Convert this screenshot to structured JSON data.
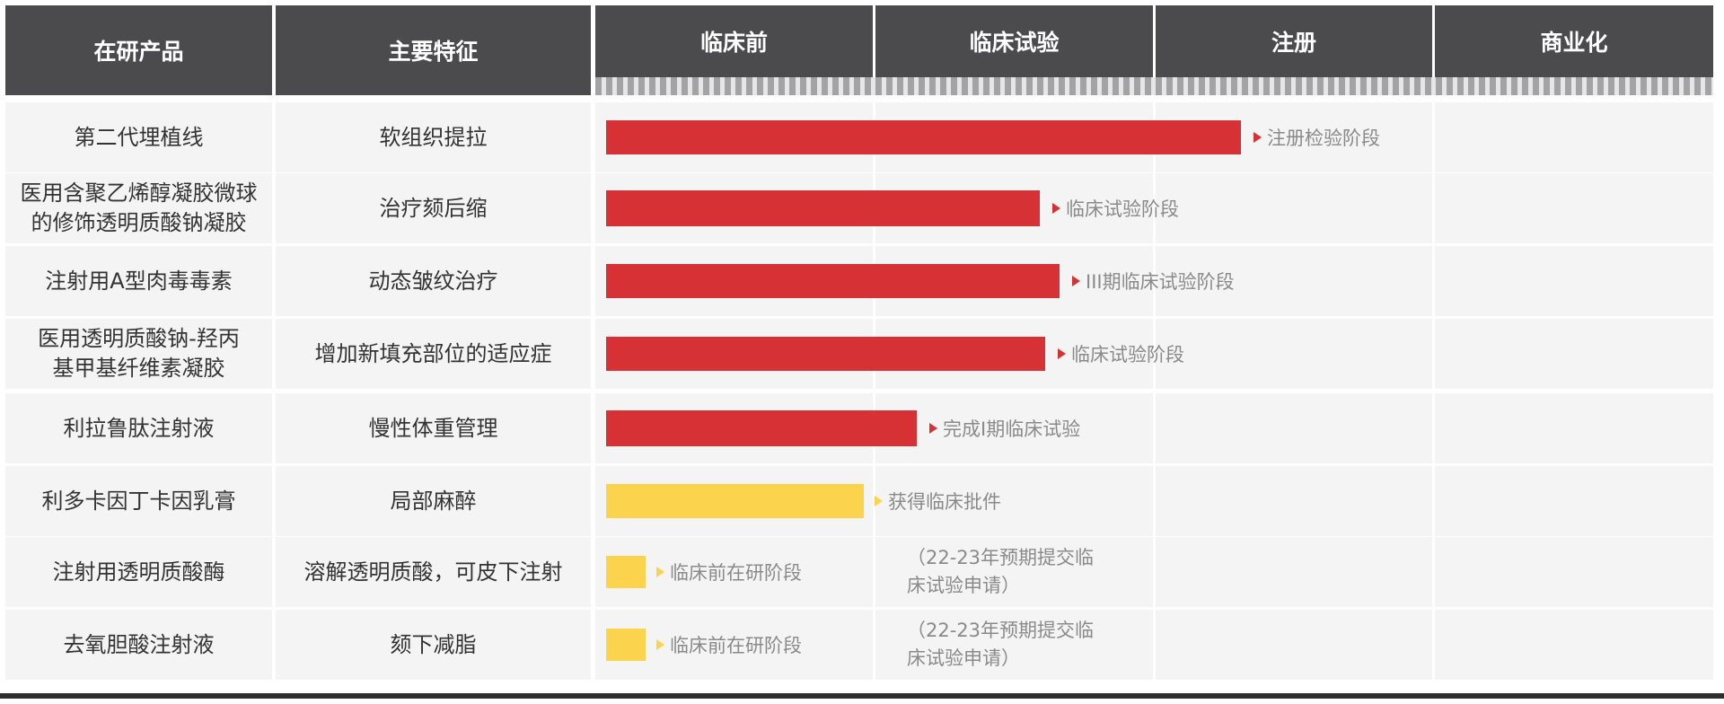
{
  "chart_data": {
    "type": "bar",
    "orientation": "horizontal",
    "columns": {
      "product": "在研产品",
      "feature": "主要特征"
    },
    "stages": [
      "临床前",
      "临床试验",
      "注册",
      "商业化"
    ],
    "colors": {
      "header": "#4b4b4d",
      "red": "#d63236",
      "yellow": "#fcd34d",
      "row": "#f4f4f4"
    },
    "rows": [
      {
        "product": "第二代埋植线",
        "feature": "软组织提拉",
        "progress": 2.27,
        "color": "red",
        "status": "注册检验阶段",
        "note": ""
      },
      {
        "product": "医用含聚乙烯醇凝胶微球的修饰透明质酸钠凝胶",
        "feature": "治疗颏后缩",
        "progress": 1.55,
        "color": "red",
        "status": "临床试验阶段",
        "note": ""
      },
      {
        "product": "注射用A型肉毒毒素",
        "feature": "动态皱纹治疗",
        "progress": 1.62,
        "color": "red",
        "status": "III期临床试验阶段",
        "note": ""
      },
      {
        "product": "医用透明质酸钠-羟丙基甲基纤维素凝胶",
        "feature": "增加新填充部位的适应症",
        "progress": 1.57,
        "color": "red",
        "status": "临床试验阶段",
        "note": ""
      },
      {
        "product": "利拉鲁肽注射液",
        "feature": "慢性体重管理",
        "progress": 1.11,
        "color": "red",
        "status": "完成I期临床试验",
        "note": ""
      },
      {
        "product": "利多卡因丁卡因乳膏",
        "feature": "局部麻醉",
        "progress": 0.92,
        "color": "yellow",
        "status": "获得临床批件",
        "note": ""
      },
      {
        "product": "注射用透明质酸酶",
        "feature": "溶解透明质酸，可皮下注射",
        "progress": 0.14,
        "color": "yellow",
        "status": "临床前在研阶段",
        "note": "（22-23年预期提交临床试验申请）"
      },
      {
        "product": "去氧胆酸注射液",
        "feature": "颏下减脂",
        "progress": 0.14,
        "color": "yellow",
        "status": "临床前在研阶段",
        "note": "（22-23年预期提交临床试验申请）"
      }
    ]
  }
}
